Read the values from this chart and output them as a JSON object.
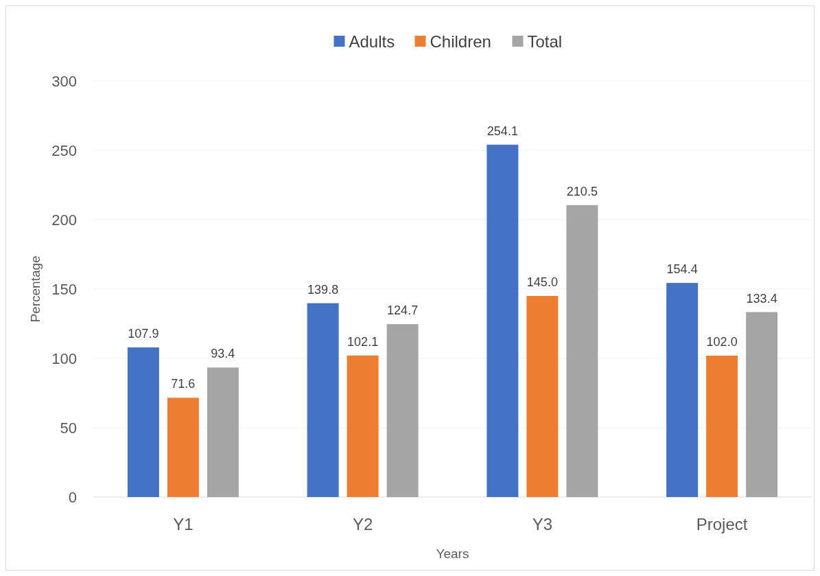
{
  "chart_data": {
    "type": "bar",
    "categories": [
      "Y1",
      "Y2",
      "Y3",
      "Project"
    ],
    "series": [
      {
        "name": "Adults",
        "color": "#4472c4",
        "values": [
          107.9,
          139.8,
          254.1,
          154.4
        ],
        "value_labels": [
          "107.9",
          "139.8",
          "254.1",
          "154.4"
        ]
      },
      {
        "name": "Children",
        "color": "#ed7d31",
        "values": [
          71.6,
          102.1,
          145.0,
          102.0
        ],
        "value_labels": [
          "71.6",
          "102.1",
          "145.0",
          "102.0"
        ]
      },
      {
        "name": "Total",
        "color": "#a5a5a5",
        "values": [
          93.4,
          124.7,
          210.5,
          133.4
        ],
        "value_labels": [
          "93.4",
          "124.7",
          "210.5",
          "133.4"
        ]
      }
    ],
    "xlabel": "Years",
    "ylabel": "Percentage",
    "ylim": [
      0,
      300
    ],
    "yticks": [
      0,
      50,
      100,
      150,
      200,
      250,
      300
    ],
    "grid": "y",
    "legend": "top"
  }
}
